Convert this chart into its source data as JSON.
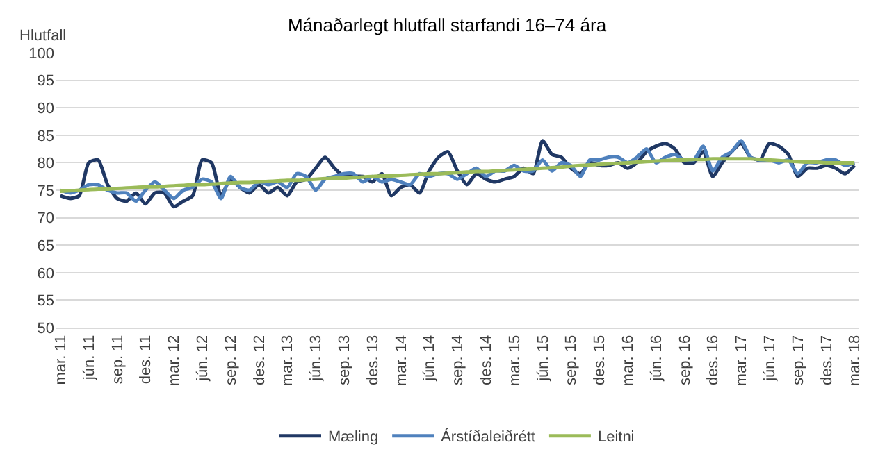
{
  "chart_data": {
    "type": "line",
    "title": "Mánaðarlegt hlutfall starfandi 16–74 ára",
    "ylabel": "Hlutfall",
    "categories": [
      "mar. 11",
      null,
      null,
      "jún. 11",
      null,
      null,
      "sep. 11",
      null,
      null,
      "des. 11",
      null,
      null,
      "mar. 12",
      null,
      null,
      "jún. 12",
      null,
      null,
      "sep. 12",
      null,
      null,
      "des. 12",
      null,
      null,
      "mar. 13",
      null,
      null,
      "jún. 13",
      null,
      null,
      "sep. 13",
      null,
      null,
      "des. 13",
      null,
      null,
      "mar. 14",
      null,
      null,
      "jún. 14",
      null,
      null,
      "sep. 14",
      null,
      null,
      "des. 14",
      null,
      null,
      "mar. 15",
      null,
      null,
      "jún. 15",
      null,
      null,
      "sep. 15",
      null,
      null,
      "des. 15",
      null,
      null,
      "mar. 16",
      null,
      null,
      "jún. 16",
      null,
      null,
      "sep. 16",
      null,
      null,
      "des. 16",
      null,
      null,
      "mar. 17",
      null,
      null,
      "jún. 17",
      null,
      null,
      "sep. 17",
      null,
      null,
      "des. 17",
      null,
      null,
      "mar. 18"
    ],
    "series": [
      {
        "name": "Mæling",
        "color": "#203864",
        "values": [
          74,
          73.5,
          74,
          80,
          80.5,
          76,
          73.5,
          73,
          74.5,
          72.5,
          74.5,
          74.5,
          72,
          73,
          74,
          80.5,
          80,
          74,
          77,
          75.5,
          74.5,
          76,
          74.5,
          75.5,
          74,
          76.5,
          77,
          79,
          81,
          79,
          77.5,
          77.5,
          77.5,
          76.5,
          78,
          74,
          75.5,
          76,
          74.5,
          78.5,
          81,
          82,
          78.5,
          76,
          78,
          77,
          76.5,
          77,
          77.5,
          79,
          78,
          84,
          81.5,
          81,
          79,
          78,
          80,
          79.5,
          79.5,
          80,
          79,
          80,
          82,
          83,
          83.5,
          82.5,
          80,
          80,
          82,
          77.5,
          80,
          82,
          83.5,
          81,
          80.5,
          83.5,
          83,
          81.5,
          77.5,
          79,
          79,
          79.5,
          79,
          78,
          79.5
        ]
      },
      {
        "name": "Árstíðaleiðrétt",
        "color": "#4f81bd",
        "values": [
          75,
          74.5,
          75,
          76,
          76,
          75,
          74.5,
          74.5,
          73,
          75,
          76.5,
          75,
          73.5,
          75,
          75.5,
          77,
          76.5,
          73.5,
          77.5,
          75.5,
          75,
          76.5,
          76,
          76.5,
          75.5,
          78,
          77.5,
          75,
          77,
          77.5,
          78,
          78,
          76.5,
          77.5,
          76.5,
          77,
          76.5,
          76,
          78,
          77.5,
          78,
          78,
          77,
          78,
          79,
          77.5,
          78.5,
          78.5,
          79.5,
          78.5,
          78.5,
          80.5,
          78.5,
          80,
          79.5,
          77.5,
          80.5,
          80.5,
          81,
          81,
          80,
          81,
          82.5,
          80,
          81,
          81.5,
          80.5,
          80.5,
          83,
          78.5,
          81,
          82,
          84,
          81,
          80.5,
          80.5,
          80,
          80.5,
          78,
          80,
          80,
          80.5,
          80.5,
          79.5,
          80
        ]
      },
      {
        "name": "Leitni",
        "color": "#9bbb59",
        "values": [
          74.8,
          74.9,
          75.0,
          75.1,
          75.2,
          75.2,
          75.3,
          75.4,
          75.5,
          75.6,
          75.6,
          75.7,
          75.8,
          75.9,
          76.0,
          76.0,
          76.1,
          76.2,
          76.3,
          76.4,
          76.4,
          76.5,
          76.6,
          76.7,
          76.8,
          76.8,
          76.9,
          77.0,
          77.1,
          77.2,
          77.2,
          77.3,
          77.4,
          77.5,
          77.6,
          77.6,
          77.7,
          77.8,
          77.9,
          78.0,
          78.0,
          78.1,
          78.2,
          78.3,
          78.4,
          78.4,
          78.5,
          78.6,
          78.7,
          78.8,
          78.9,
          79.0,
          79.1,
          79.2,
          79.4,
          79.5,
          79.6,
          79.7,
          79.8,
          79.9,
          80.0,
          80.1,
          80.2,
          80.3,
          80.4,
          80.5,
          80.5,
          80.6,
          80.6,
          80.7,
          80.7,
          80.7,
          80.7,
          80.7,
          80.6,
          80.5,
          80.4,
          80.3,
          80.2,
          80.1,
          80.1,
          80.0,
          80.0,
          80.0,
          80.0
        ]
      }
    ],
    "ylim": [
      50,
      100
    ],
    "yticks": [
      50,
      55,
      60,
      65,
      70,
      75,
      80,
      85,
      90,
      95,
      100
    ],
    "grid": "y",
    "legend": "bottom",
    "line_style": "solid",
    "marker": "none"
  }
}
